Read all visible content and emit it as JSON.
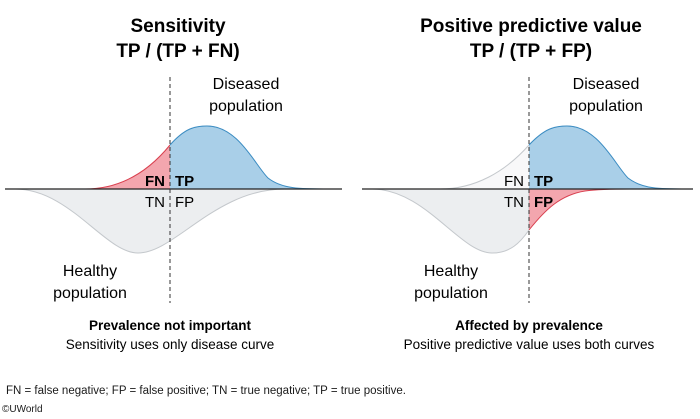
{
  "left_panel": {
    "title_line1": "Sensitivity",
    "title_line2": "TP / (TP + FN)",
    "diseased_line1": "Diseased",
    "diseased_line2": "population",
    "healthy_line1": "Healthy",
    "healthy_line2": "population",
    "fn": "FN",
    "tp": "TP",
    "tn": "TN",
    "fp": "FP",
    "caption_bold": "Prevalence not important",
    "caption": "Sensitivity uses only disease curve"
  },
  "right_panel": {
    "title_line1": "Positive predictive value",
    "title_line2": "TP / (TP + FP)",
    "diseased_line1": "Diseased",
    "diseased_line2": "population",
    "healthy_line1": "Healthy",
    "healthy_line2": "population",
    "fn": "FN",
    "tp": "TP",
    "tn": "TN",
    "fp": "FP",
    "caption_bold": "Affected by prevalence",
    "caption": "Positive predictive value uses both curves"
  },
  "footnote": "FN = false negative; FP = false positive; TN = true negative; TP = true positive.",
  "copyright": "©UWorld",
  "colors": {
    "positive_fill": "#a9cfe8",
    "positive_stroke": "#3b8cc2",
    "highlight_fill": "#f3a6ae",
    "highlight_stroke": "#d9404f",
    "neutral_fill": "#eceef0",
    "neutral_stroke": "#c4c8cc",
    "axis": "#222222"
  }
}
